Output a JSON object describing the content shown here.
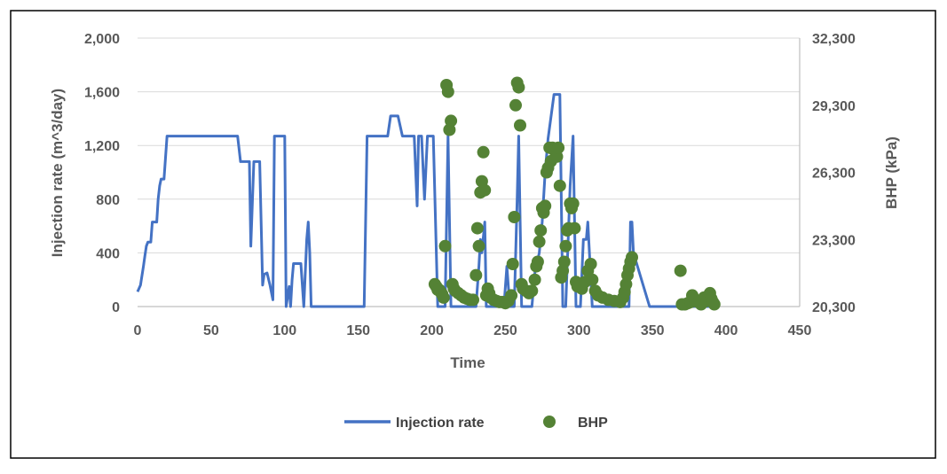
{
  "chart_data": {
    "type": "line+scatter",
    "title": "",
    "xlabel": "Time",
    "ylabel_left": "Injection rate (m^3/day)",
    "ylabel_right": "BHP (kPa)",
    "xlim": [
      0,
      450
    ],
    "ylim_left": [
      0,
      2000
    ],
    "ylim_right": [
      20300,
      32300
    ],
    "x_ticks": [
      "0",
      "50",
      "100",
      "150",
      "200",
      "250",
      "300",
      "350",
      "400",
      "450"
    ],
    "y_left_ticks": [
      "0",
      "400",
      "800",
      "1,200",
      "1,600",
      "2,000"
    ],
    "y_right_ticks": [
      "20,300",
      "23,300",
      "26,300",
      "29,300",
      "32,300"
    ],
    "x_tick_values": [
      0,
      50,
      100,
      150,
      200,
      250,
      300,
      350,
      400,
      450
    ],
    "y_left_tick_values": [
      0,
      400,
      800,
      1200,
      1600,
      2000
    ],
    "y_right_tick_values": [
      20300,
      23300,
      26300,
      29300,
      32300
    ],
    "grid": "horizontal",
    "legend": "bottom-center",
    "colors": {
      "injection": "#4472C4",
      "bhp": "#548235",
      "grid": "#d9d9d9",
      "axis": "#bfbfbf",
      "frame": "#000000"
    },
    "series": [
      {
        "name": "Injection rate",
        "kind": "line",
        "points": [
          [
            0,
            110
          ],
          [
            2,
            160
          ],
          [
            4,
            300
          ],
          [
            5,
            380
          ],
          [
            6,
            450
          ],
          [
            7,
            480
          ],
          [
            9,
            480
          ],
          [
            10,
            630
          ],
          [
            13,
            630
          ],
          [
            14,
            800
          ],
          [
            15,
            900
          ],
          [
            16,
            950
          ],
          [
            18,
            950
          ],
          [
            20,
            1270
          ],
          [
            68,
            1270
          ],
          [
            70,
            1080
          ],
          [
            76,
            1080
          ],
          [
            77,
            450
          ],
          [
            79,
            1080
          ],
          [
            83,
            1080
          ],
          [
            85,
            160
          ],
          [
            86,
            240
          ],
          [
            88,
            250
          ],
          [
            90,
            160
          ],
          [
            92,
            50
          ],
          [
            93,
            1270
          ],
          [
            100,
            1270
          ],
          [
            101,
            0
          ],
          [
            103,
            150
          ],
          [
            104,
            0
          ],
          [
            105,
            200
          ],
          [
            106,
            320
          ],
          [
            111,
            320
          ],
          [
            113,
            0
          ],
          [
            115,
            500
          ],
          [
            116,
            630
          ],
          [
            117,
            400
          ],
          [
            118,
            0
          ],
          [
            154,
            0
          ],
          [
            156,
            1270
          ],
          [
            170,
            1270
          ],
          [
            172,
            1420
          ],
          [
            177,
            1420
          ],
          [
            180,
            1270
          ],
          [
            188,
            1270
          ],
          [
            190,
            750
          ],
          [
            191,
            1270
          ],
          [
            193,
            1270
          ],
          [
            195,
            800
          ],
          [
            197,
            1270
          ],
          [
            201,
            1270
          ],
          [
            204,
            0
          ],
          [
            209,
            0
          ],
          [
            211,
            1270
          ],
          [
            213,
            0
          ],
          [
            230,
            0
          ],
          [
            232,
            300
          ],
          [
            233,
            500
          ],
          [
            234,
            400
          ],
          [
            236,
            630
          ],
          [
            237,
            0
          ],
          [
            249,
            0
          ],
          [
            251,
            300
          ],
          [
            253,
            0
          ],
          [
            256,
            0
          ],
          [
            258,
            800
          ],
          [
            259,
            1270
          ],
          [
            261,
            0
          ],
          [
            268,
            0
          ],
          [
            270,
            250
          ],
          [
            273,
            400
          ],
          [
            275,
            630
          ],
          [
            277,
            1000
          ],
          [
            279,
            1250
          ],
          [
            283,
            1580
          ],
          [
            287,
            1580
          ],
          [
            289,
            0
          ],
          [
            291,
            0
          ],
          [
            294,
            900
          ],
          [
            296,
            1270
          ],
          [
            298,
            0
          ],
          [
            301,
            0
          ],
          [
            303,
            500
          ],
          [
            305,
            500
          ],
          [
            306,
            630
          ],
          [
            309,
            0
          ],
          [
            334,
            0
          ],
          [
            335,
            630
          ],
          [
            336,
            630
          ],
          [
            337,
            400
          ],
          [
            348,
            0
          ],
          [
            390,
            0
          ]
        ]
      },
      {
        "name": "BHP",
        "kind": "scatter",
        "points": [
          [
            202,
            21300
          ],
          [
            203,
            21200
          ],
          [
            204,
            21050
          ],
          [
            205,
            21050
          ],
          [
            206,
            20950
          ],
          [
            207,
            20850
          ],
          [
            208,
            20700
          ],
          [
            209,
            23000
          ],
          [
            210,
            30200
          ],
          [
            211,
            29900
          ],
          [
            212,
            28200
          ],
          [
            213,
            28600
          ],
          [
            214,
            21300
          ],
          [
            215,
            21100
          ],
          [
            216,
            21000
          ],
          [
            218,
            20900
          ],
          [
            220,
            20800
          ],
          [
            222,
            20700
          ],
          [
            224,
            20650
          ],
          [
            226,
            20600
          ],
          [
            228,
            20600
          ],
          [
            230,
            21700
          ],
          [
            231,
            23800
          ],
          [
            232,
            23000
          ],
          [
            233,
            25400
          ],
          [
            234,
            25900
          ],
          [
            235,
            27200
          ],
          [
            236,
            25500
          ],
          [
            237,
            20800
          ],
          [
            238,
            21100
          ],
          [
            239,
            20900
          ],
          [
            240,
            20700
          ],
          [
            242,
            20600
          ],
          [
            244,
            20550
          ],
          [
            246,
            20500
          ],
          [
            248,
            20500
          ],
          [
            250,
            20450
          ],
          [
            252,
            20550
          ],
          [
            254,
            20800
          ],
          [
            255,
            22200
          ],
          [
            256,
            24300
          ],
          [
            257,
            29300
          ],
          [
            258,
            30300
          ],
          [
            259,
            30100
          ],
          [
            260,
            28400
          ],
          [
            261,
            21300
          ],
          [
            262,
            21100
          ],
          [
            264,
            21000
          ],
          [
            266,
            20900
          ],
          [
            268,
            21000
          ],
          [
            270,
            21500
          ],
          [
            271,
            22100
          ],
          [
            272,
            22300
          ],
          [
            273,
            23200
          ],
          [
            274,
            23700
          ],
          [
            275,
            24700
          ],
          [
            276,
            24500
          ],
          [
            277,
            24800
          ],
          [
            278,
            26300
          ],
          [
            279,
            26500
          ],
          [
            280,
            27400
          ],
          [
            281,
            26800
          ],
          [
            282,
            27400
          ],
          [
            283,
            27300
          ],
          [
            285,
            27000
          ],
          [
            286,
            27400
          ],
          [
            287,
            25700
          ],
          [
            288,
            21600
          ],
          [
            289,
            21900
          ],
          [
            290,
            22300
          ],
          [
            291,
            23000
          ],
          [
            292,
            23700
          ],
          [
            293,
            23800
          ],
          [
            294,
            24900
          ],
          [
            295,
            24700
          ],
          [
            296,
            24900
          ],
          [
            297,
            23800
          ],
          [
            298,
            21400
          ],
          [
            299,
            21200
          ],
          [
            300,
            21200
          ],
          [
            302,
            21100
          ],
          [
            304,
            21400
          ],
          [
            306,
            21900
          ],
          [
            308,
            22200
          ],
          [
            309,
            21500
          ],
          [
            311,
            21000
          ],
          [
            313,
            20800
          ],
          [
            316,
            20700
          ],
          [
            320,
            20600
          ],
          [
            324,
            20550
          ],
          [
            328,
            20500
          ],
          [
            330,
            20700
          ],
          [
            331,
            20950
          ],
          [
            332,
            21300
          ],
          [
            333,
            21700
          ],
          [
            334,
            22000
          ],
          [
            335,
            22300
          ],
          [
            336,
            22500
          ],
          [
            369,
            21900
          ],
          [
            370,
            20400
          ],
          [
            372,
            20400
          ],
          [
            374,
            20450
          ],
          [
            376,
            20500
          ],
          [
            377,
            20800
          ],
          [
            379,
            20600
          ],
          [
            381,
            20500
          ],
          [
            383,
            20400
          ],
          [
            385,
            20700
          ],
          [
            387,
            20550
          ],
          [
            389,
            20900
          ],
          [
            390,
            20650
          ],
          [
            391,
            20500
          ],
          [
            392,
            20400
          ]
        ]
      }
    ]
  }
}
